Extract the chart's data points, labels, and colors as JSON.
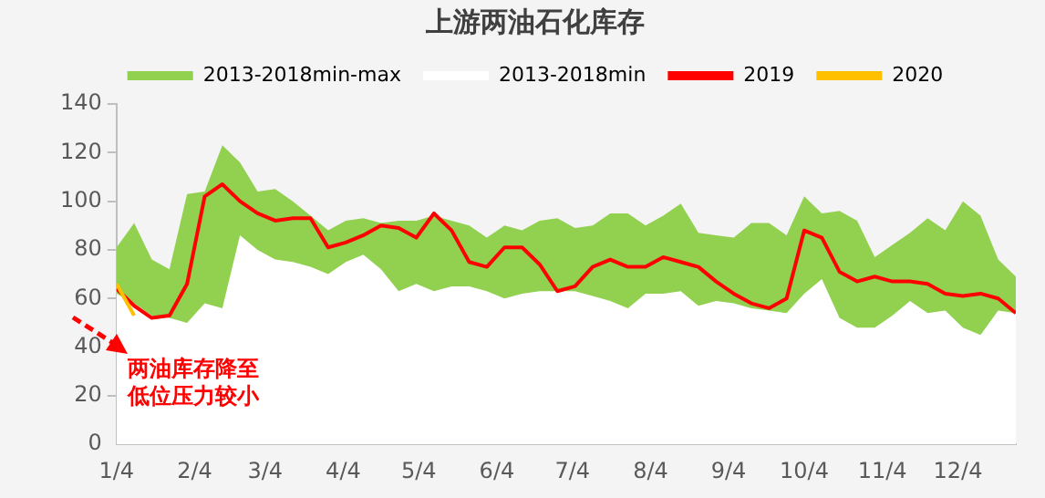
{
  "chart_data": {
    "type": "area",
    "title": "上游两油石化库存",
    "x": [
      "--01-04",
      "--01-11",
      "--01-18",
      "--01-25",
      "--02-01",
      "--02-08",
      "--02-15",
      "--02-22",
      "--03-01",
      "--03-08",
      "--03-15",
      "--03-22",
      "--03-29",
      "--04-05",
      "--04-12",
      "--04-19",
      "--04-26",
      "--05-03",
      "--05-10",
      "--05-17",
      "--05-24",
      "--05-31",
      "--06-07",
      "--06-14",
      "--06-21",
      "--06-28",
      "--07-05",
      "--07-12",
      "--07-19",
      "--07-26",
      "--08-02",
      "--08-09",
      "--08-16",
      "--08-23",
      "--08-30",
      "--09-06",
      "--09-13",
      "--09-20",
      "--09-27",
      "--10-04",
      "--10-11",
      "--10-18",
      "--10-25",
      "--11-01",
      "--11-08",
      "--11-15",
      "--11-22",
      "--11-29",
      "--12-06",
      "--12-13",
      "--12-20",
      "--12-27"
    ],
    "series": [
      {
        "name": "2013-2018min-max",
        "color": "#92d050",
        "values": [
          81,
          91,
          76,
          72,
          103,
          104,
          123,
          116,
          104,
          105,
          100,
          94,
          88,
          92,
          93,
          91,
          92,
          92,
          94,
          92,
          90,
          85,
          90,
          88,
          92,
          93,
          89,
          90,
          95,
          95,
          90,
          94,
          99,
          87,
          86,
          85,
          91,
          91,
          86,
          102,
          95,
          96,
          92,
          77,
          82,
          87,
          93,
          88,
          100,
          94,
          76,
          69
        ]
      },
      {
        "name": "2013-2018min",
        "color": "#ffffff",
        "values": [
          62,
          58,
          53,
          52,
          50,
          58,
          56,
          86,
          80,
          76,
          75,
          73,
          70,
          75,
          78,
          72,
          63,
          66,
          63,
          65,
          65,
          63,
          60,
          62,
          63,
          63,
          63,
          61,
          59,
          56,
          62,
          62,
          63,
          57,
          59,
          58,
          56,
          55,
          54,
          62,
          68,
          52,
          48,
          48,
          53,
          59,
          54,
          55,
          48,
          45,
          55,
          54
        ]
      },
      {
        "name": "2019",
        "type": "line",
        "color": "#ff0000",
        "values": [
          64,
          57,
          52,
          53,
          66,
          102,
          107,
          100,
          95,
          92,
          93,
          93,
          81,
          83,
          86,
          90,
          89,
          85,
          95,
          88,
          75,
          73,
          81,
          81,
          74,
          63,
          65,
          73,
          76,
          73,
          73,
          77,
          75,
          73,
          67,
          62,
          58,
          56,
          60,
          88,
          85,
          71,
          67,
          69,
          67,
          67,
          66,
          62,
          61,
          62,
          60,
          54
        ]
      },
      {
        "name": "2020",
        "type": "line",
        "color": "#ffc000",
        "x": [
          "--01-04",
          "--01-11"
        ],
        "values": [
          66,
          53
        ]
      }
    ],
    "xlim": [
      "--01-04",
      "--12-27"
    ],
    "xticks": [
      {
        "value": "--01-04",
        "label": "1/4"
      },
      {
        "value": "--02-04",
        "label": "2/4"
      },
      {
        "value": "--03-04",
        "label": "3/4"
      },
      {
        "value": "--04-04",
        "label": "4/4"
      },
      {
        "value": "--05-04",
        "label": "5/4"
      },
      {
        "value": "--06-04",
        "label": "6/4"
      },
      {
        "value": "--07-04",
        "label": "7/4"
      },
      {
        "value": "--08-04",
        "label": "8/4"
      },
      {
        "value": "--09-04",
        "label": "9/4"
      },
      {
        "value": "--10-04",
        "label": "10/4"
      },
      {
        "value": "--11-04",
        "label": "11/4"
      },
      {
        "value": "--12-04",
        "label": "12/4"
      }
    ],
    "ylim": [
      0,
      140
    ],
    "yticks": [
      0,
      20,
      40,
      60,
      80,
      100,
      120,
      140
    ],
    "grid": false,
    "legend": "top",
    "marker": "none",
    "annotations": [
      "两油库存降至低位压力较小"
    ]
  }
}
